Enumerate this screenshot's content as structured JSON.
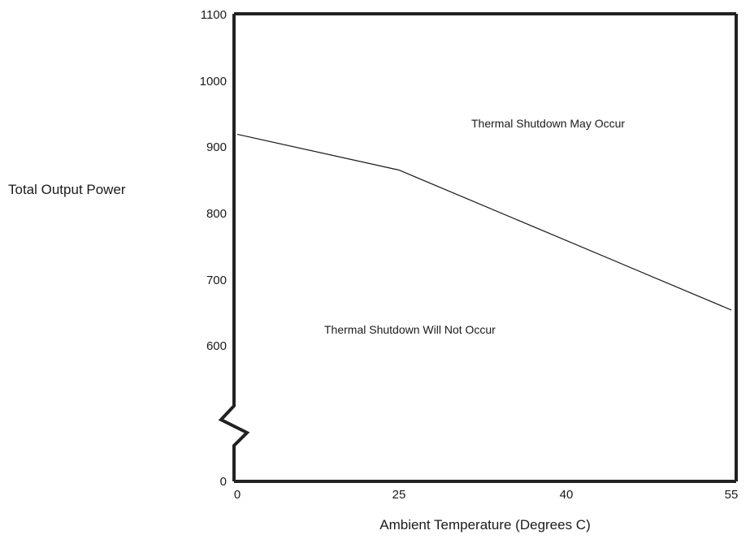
{
  "chart_data": {
    "type": "line",
    "title": "",
    "xlabel": "Ambient Temperature (Degrees C)",
    "ylabel": "Total Output Power",
    "x_ticks": [
      "0",
      "25",
      "40",
      "55"
    ],
    "y_ticks": [
      "1100",
      "1000",
      "900",
      "800",
      "700",
      "600",
      "0"
    ],
    "y_axis_break": "between 0 and 600",
    "series": [
      {
        "x": [
          0,
          25,
          55
        ],
        "y": [
          915,
          860,
          645
        ]
      }
    ],
    "annotations": [
      "Thermal Shutdown May Occur",
      "Thermal Shutdown Will Not Occur"
    ],
    "grid": false,
    "legend": "none"
  }
}
